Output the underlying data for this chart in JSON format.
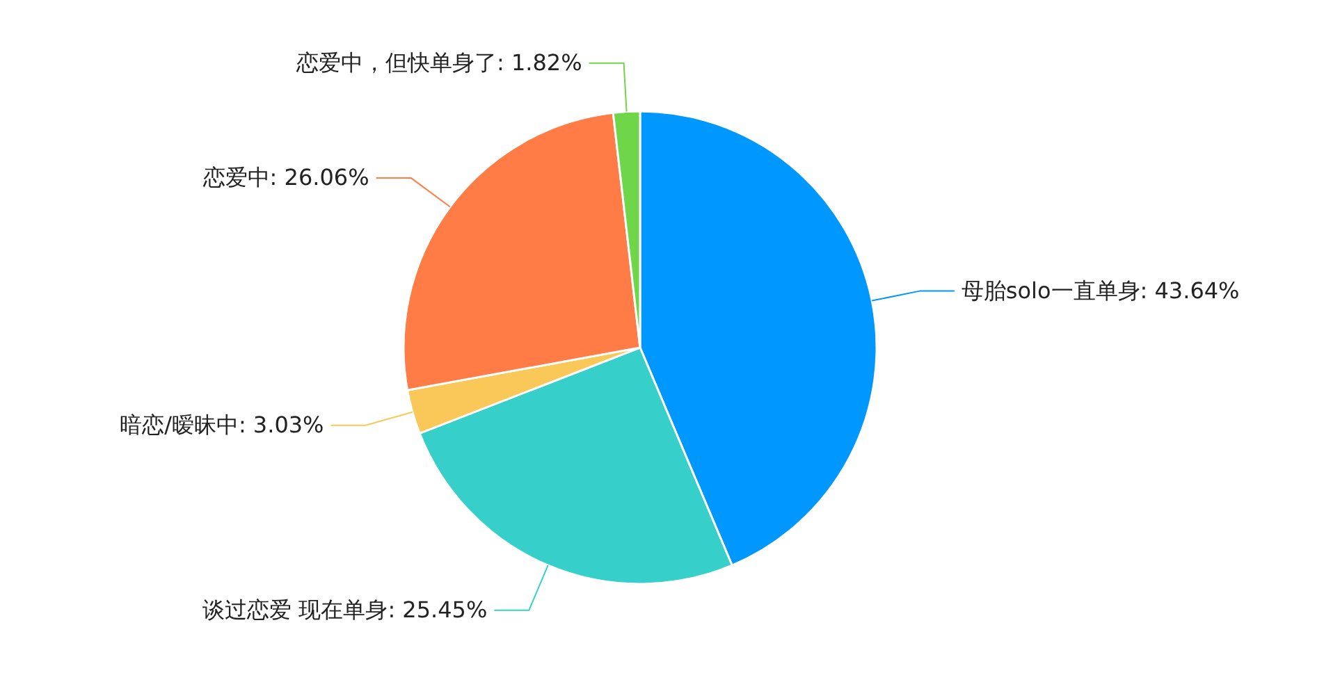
{
  "chart_data": {
    "type": "pie",
    "categories": [
      "母胎solo一直单身",
      "谈过恋爱 现在单身",
      "暗恋/暧昧中",
      "恋爱中",
      "恋爱中，但快单身了"
    ],
    "values": [
      43.64,
      25.45,
      3.03,
      26.06,
      1.82
    ],
    "value_labels": [
      "43.64%",
      "25.45%",
      "3.03%",
      "26.06%",
      "1.82%"
    ],
    "colors": [
      "#0098ff",
      "#36cfc9",
      "#fac858",
      "#ff7c46",
      "#6fd549"
    ]
  }
}
